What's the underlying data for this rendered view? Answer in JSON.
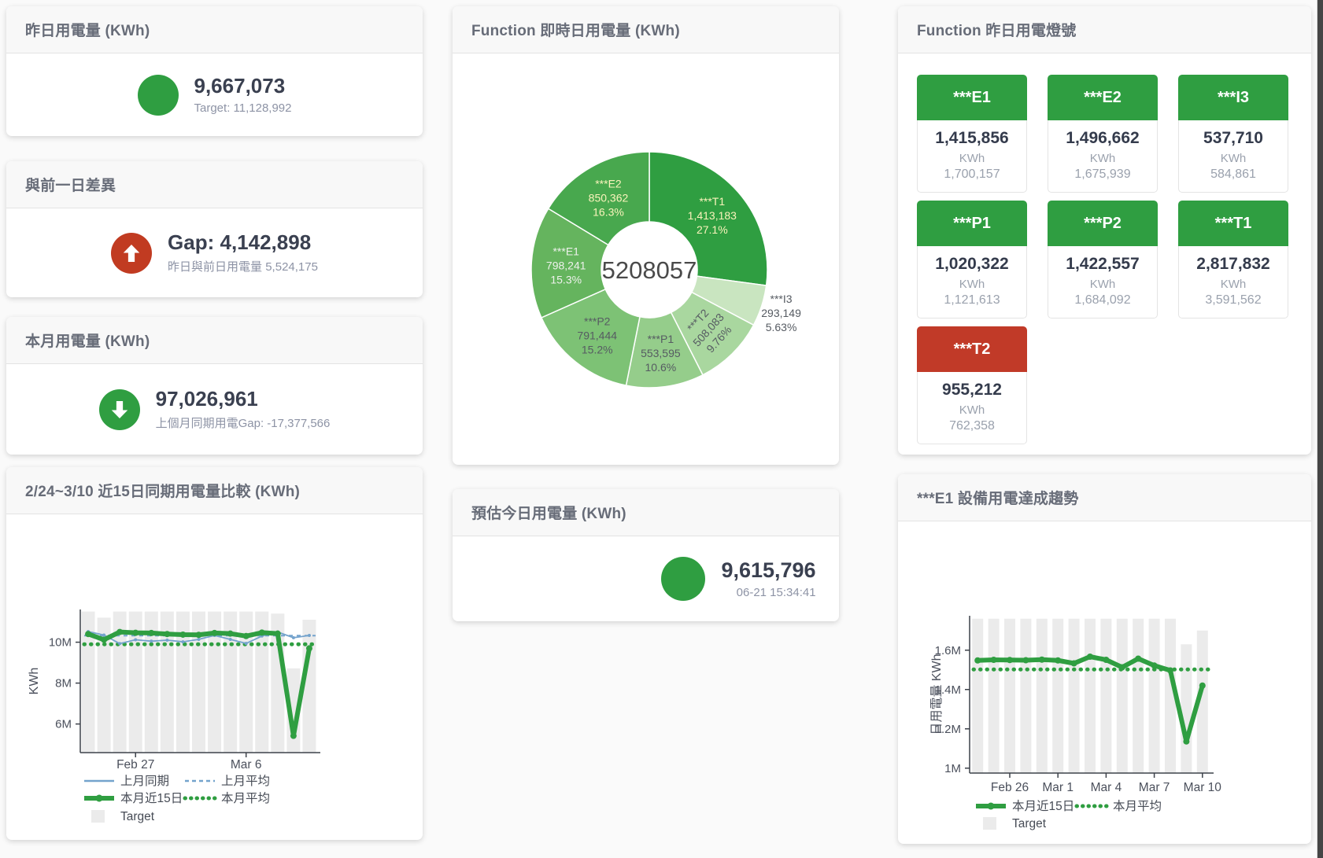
{
  "colors": {
    "green": "#2f9e41",
    "red": "#c13b21",
    "bar_gray": "#ebebeb",
    "blue_line": "#74a3cd"
  },
  "panels": {
    "yesterday": {
      "title": "昨日用電量 (KWh)",
      "value": "9,667,073",
      "subtext": "Target: 11,128,992",
      "indicator_color": "#2f9e41"
    },
    "gap": {
      "title": "與前一日差異",
      "value": "Gap: 4,142,898",
      "subtext": "昨日與前日用電量 5,524,175",
      "indicator_color": "#c13b21"
    },
    "month": {
      "title": "本月用電量 (KWh)",
      "value": "97,026,961",
      "subtext": "上個月同期用電Gap: -17,377,566",
      "indicator_color": "#2f9e41"
    },
    "estimate": {
      "title": "預估今日用電量 (KWh)",
      "value": "9,615,796",
      "subtext": "06-21 15:34:41",
      "indicator_color": "#2f9e41"
    },
    "lights": {
      "title": "Function 昨日用電燈號",
      "unit_label": "KWh",
      "tiles": [
        {
          "label": "***E1",
          "value": "1,415,856",
          "target": "1,700,157",
          "color": "#2f9e41"
        },
        {
          "label": "***E2",
          "value": "1,496,662",
          "target": "1,675,939",
          "color": "#2f9e41"
        },
        {
          "label": "***I3",
          "value": "537,710",
          "target": "584,861",
          "color": "#2f9e41"
        },
        {
          "label": "***P1",
          "value": "1,020,322",
          "target": "1,121,613",
          "color": "#2f9e41"
        },
        {
          "label": "***P2",
          "value": "1,422,557",
          "target": "1,684,092",
          "color": "#2f9e41"
        },
        {
          "label": "***T1",
          "value": "2,817,832",
          "target": "3,591,562",
          "color": "#2f9e41"
        },
        {
          "label": "***T2",
          "value": "955,212",
          "target": "762,358",
          "color": "#c13a28"
        }
      ]
    }
  },
  "chart_data": [
    {
      "type": "pie",
      "title": "Function 即時日用電量 (KWh)",
      "center_total": "5208057",
      "slices": [
        {
          "name": "***T1",
          "value": 1413183,
          "value_label": "1,413,183",
          "pct": "27.1%",
          "color": "#2f9e41",
          "label_color": "#faf3bb",
          "label_pos": "inside"
        },
        {
          "name": "***I3",
          "value": 293149,
          "value_label": "293,149",
          "pct": "5.63%",
          "color": "#c9e5c0",
          "label_color": "#565b62",
          "label_pos": "outside"
        },
        {
          "name": "***T2",
          "value": 508083,
          "value_label": "508,083",
          "pct": "9.76%",
          "color": "#a9d79f",
          "label_color": "#565b62",
          "label_pos": "inside",
          "label_rotate": -48
        },
        {
          "name": "***P1",
          "value": 553595,
          "value_label": "553,595",
          "pct": "10.6%",
          "color": "#95cd8b",
          "label_color": "#565b62",
          "label_pos": "inside"
        },
        {
          "name": "***P2",
          "value": 791444,
          "value_label": "791,444",
          "pct": "15.2%",
          "color": "#7dc275",
          "label_color": "#565b62",
          "label_pos": "inside"
        },
        {
          "name": "***E1",
          "value": 798241,
          "value_label": "798,241",
          "pct": "15.3%",
          "color": "#65b45e",
          "label_color": "#eef1ec",
          "label_pos": "inside"
        },
        {
          "name": "***E2",
          "value": 850362,
          "value_label": "850,362",
          "pct": "16.3%",
          "color": "#48a84e",
          "label_color": "#faf3bb",
          "label_pos": "inside"
        }
      ]
    },
    {
      "type": "bar+line",
      "title": "2/24~3/10 近15日同期用電量比較 (KWh)",
      "ylabel": "KWh",
      "n_points": 15,
      "ylim": [
        4.6,
        11.6
      ],
      "y_ticks": [
        {
          "v": 6,
          "label": "6M"
        },
        {
          "v": 8,
          "label": "8M"
        },
        {
          "v": 10,
          "label": "10M"
        }
      ],
      "x_ticks": [
        {
          "i": 3,
          "label": "Feb 27"
        },
        {
          "i": 10,
          "label": "Mar 6"
        }
      ],
      "series": [
        {
          "name": "Target",
          "type": "bar",
          "color": "#ebebeb",
          "values": [
            11.5,
            11.2,
            11.5,
            11.5,
            11.5,
            11.5,
            11.5,
            11.5,
            11.5,
            11.5,
            11.5,
            11.5,
            11.4,
            8.72,
            11.1
          ]
        },
        {
          "name": "上月平均",
          "type": "avg",
          "style": "dash",
          "color": "#74a3cd",
          "value": 10.32
        },
        {
          "name": "本月平均",
          "type": "avg",
          "style": "dot",
          "color": "#2f9e41",
          "value": 9.9
        },
        {
          "name": "上月同期",
          "type": "line",
          "color": "#74a3cd",
          "values": [
            10.52,
            10.35,
            9.93,
            10.12,
            10.05,
            10.1,
            10.02,
            10.14,
            10.33,
            10.14,
            9.94,
            10.3,
            10.5,
            10.22,
            10.33
          ]
        },
        {
          "name": "本月近15日",
          "type": "line",
          "thick": true,
          "color": "#2f9e41",
          "values": [
            10.4,
            10.12,
            10.5,
            10.46,
            10.45,
            10.4,
            10.37,
            10.36,
            10.45,
            10.42,
            10.3,
            10.47,
            10.42,
            5.42,
            9.7
          ]
        }
      ],
      "legend": [
        {
          "label": "上月同期",
          "style": "line",
          "color": "#74a3cd"
        },
        {
          "label": "上月平均",
          "style": "dash",
          "color": "#74a3cd"
        },
        {
          "label": "本月近15日",
          "style": "thick",
          "color": "#2f9e41"
        },
        {
          "label": "本月平均",
          "style": "dot",
          "color": "#2f9e41"
        },
        {
          "label": "Target",
          "style": "box",
          "color": "#ebebeb"
        }
      ]
    },
    {
      "type": "bar+line",
      "title": "***E1 設備用電達成趨勢",
      "ylabel": "日用電量 KWh",
      "n_points": 15,
      "ylim": [
        0.975,
        1.775
      ],
      "y_ticks": [
        {
          "v": 1,
          "label": "1M"
        },
        {
          "v": 1.2,
          "label": "1.2M"
        },
        {
          "v": 1.4,
          "label": "1.4M"
        },
        {
          "v": 1.6,
          "label": "1.6M"
        }
      ],
      "x_ticks": [
        {
          "i": 2,
          "label": "Feb 26"
        },
        {
          "i": 5,
          "label": "Mar 1"
        },
        {
          "i": 8,
          "label": "Mar 4"
        },
        {
          "i": 11,
          "label": "Mar 7"
        },
        {
          "i": 14,
          "label": "Mar 10"
        }
      ],
      "series": [
        {
          "name": "Target",
          "type": "bar",
          "color": "#ebebeb",
          "values": [
            1.76,
            1.76,
            1.76,
            1.76,
            1.76,
            1.76,
            1.76,
            1.76,
            1.76,
            1.76,
            1.76,
            1.76,
            1.76,
            1.63,
            1.7
          ]
        },
        {
          "name": "本月平均",
          "type": "avg",
          "style": "dot",
          "color": "#2f9e41",
          "value": 1.502
        },
        {
          "name": "本月近15日",
          "type": "line",
          "thick": true,
          "color": "#2f9e41",
          "values": [
            1.548,
            1.551,
            1.55,
            1.549,
            1.552,
            1.548,
            1.533,
            1.567,
            1.551,
            1.513,
            1.557,
            1.522,
            1.497,
            1.136,
            1.42
          ]
        }
      ],
      "legend": [
        {
          "label": "本月近15日",
          "style": "thick",
          "color": "#2f9e41"
        },
        {
          "label": "本月平均",
          "style": "dot",
          "color": "#2f9e41"
        },
        {
          "label": "Target",
          "style": "box",
          "color": "#ebebeb"
        }
      ]
    }
  ]
}
